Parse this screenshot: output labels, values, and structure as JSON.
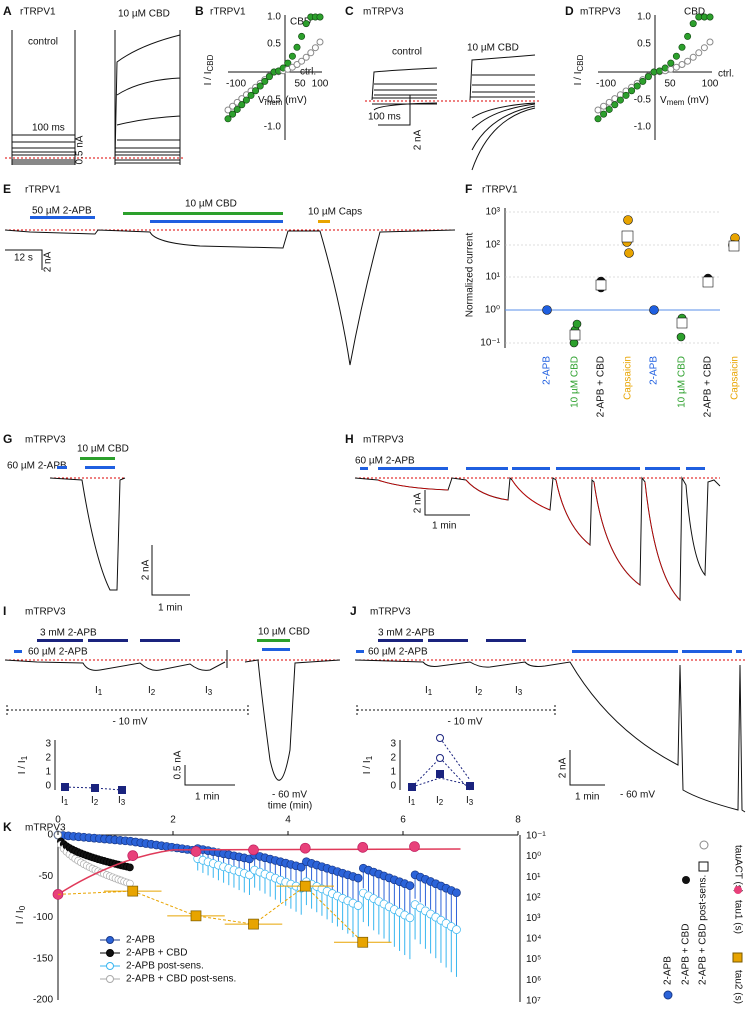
{
  "panels": {
    "A": {
      "label": "A",
      "cell": "rTRPV1",
      "control": "control",
      "drug": "10 µM CBD",
      "time_scale": "100 ms",
      "current_scale": "0.5 nA"
    },
    "B": {
      "label": "B",
      "cell": "rTRPV1",
      "cbd": "CBD",
      "ctrl": "ctrl.",
      "y_label": "I / I",
      "y_label_sub": "CBD",
      "x_label": "V",
      "x_label_sub": "mem",
      "x_label_unit": " (mV)",
      "yticks": [
        "1.0",
        "0.5",
        "-0.5",
        "-1.0"
      ],
      "xticks": [
        "-100",
        "50",
        "100"
      ]
    },
    "C": {
      "label": "C",
      "cell": "mTRPV3",
      "control": "control",
      "drug": "10 µM CBD",
      "time_scale": "100 ms",
      "current_scale": "2 nA"
    },
    "D": {
      "label": "D",
      "cell": "mTRPV3",
      "cbd": "CBD",
      "ctrl": "ctrl.",
      "y_label": "I / I",
      "y_label_sub": "CBD",
      "x_label": "V",
      "x_label_sub": "mem",
      "x_label_unit": " (mV)",
      "yticks": [
        "1.0",
        "0.5",
        "-0.5",
        "-1.0"
      ],
      "xticks": [
        "-100",
        "50",
        "100"
      ]
    },
    "E": {
      "label": "E",
      "cell": "rTRPV1",
      "apb": "50 µM 2-APB",
      "cbd": "10 µM CBD",
      "caps": "10 µM Caps",
      "time_scale": "12 s",
      "current_scale": "2 nA"
    },
    "F": {
      "label": "F",
      "cell": "rTRPV1",
      "y_label": "Normalized current",
      "yticks": [
        "10³",
        "10²",
        "10¹",
        "10⁰",
        "10⁻¹"
      ],
      "groups": [
        [
          "2-APB",
          "10 µM CBD",
          "2-APB + CBD",
          "Capsaicin"
        ],
        [
          "2-APB",
          "10 µM CBD",
          "2-APB + CBD",
          "Capsaicin"
        ]
      ]
    },
    "G": {
      "label": "G",
      "cell": "mTRPV3",
      "apb": "60 µM 2-APB",
      "cbd": "10 µM CBD",
      "current_scale": "2 nA",
      "time_scale": "1 min"
    },
    "H": {
      "label": "H",
      "cell": "mTRPV3",
      "apb": "60 µM 2-APB",
      "current_scale": "2 nA",
      "time_scale": "1 min"
    },
    "I": {
      "label": "I",
      "cell": "mTRPV3",
      "apb_high": "3 mM 2-APB",
      "apb_low": "60 µM 2-APB",
      "cbd": "10 µM CBD",
      "pulses": [
        "I",
        "I",
        "I"
      ],
      "pulse_subs": [
        "1",
        "2",
        "3"
      ],
      "hold": "- 10 mV",
      "hold2": "- 60 mV",
      "current_scale": "0.5 nA",
      "time_scale": "1 min",
      "inset_y": "I / I",
      "inset_y_sub": "1",
      "inset_ticks": [
        "3",
        "2",
        "1",
        "0"
      ]
    },
    "J": {
      "label": "J",
      "cell": "mTRPV3",
      "apb_high": "3 mM 2-APB",
      "apb_low": "60 µM 2-APB",
      "pulses": [
        "I",
        "I",
        "I"
      ],
      "pulse_subs": [
        "1",
        "2",
        "3"
      ],
      "hold": "- 10 mV",
      "hold2": "- 60 mV",
      "current_scale": "2 nA",
      "time_scale": "1 min",
      "inset_y": "I / I",
      "inset_y_sub": "1",
      "inset_ticks": [
        "3",
        "2",
        "1",
        "0"
      ]
    },
    "K": {
      "label": "K",
      "cell": "mTRPV3",
      "x_label": "time (min)",
      "xticks": [
        "0",
        "2",
        "4",
        "6",
        "8"
      ],
      "y_label": "I / I",
      "y_label_sub": "0",
      "yticks": [
        "0",
        "-50",
        "-100",
        "-150",
        "-200"
      ],
      "y2ticks": [
        "10⁻¹",
        "10⁰",
        "10¹",
        "10²",
        "10³",
        "10⁴",
        "10⁵",
        "10⁶",
        "10⁷"
      ],
      "legend": [
        "2-APB",
        "2-APB + CBD",
        "2-APB post-sens.",
        "2-APB + CBD post-sens."
      ],
      "right_labels": [
        "tauACT (s)",
        "tau1 (s)",
        "tau2 (s)"
      ],
      "right_legend": [
        "2-APB",
        "2-APB + CBD",
        "2-APB + CBD post-sens."
      ]
    }
  }
}
